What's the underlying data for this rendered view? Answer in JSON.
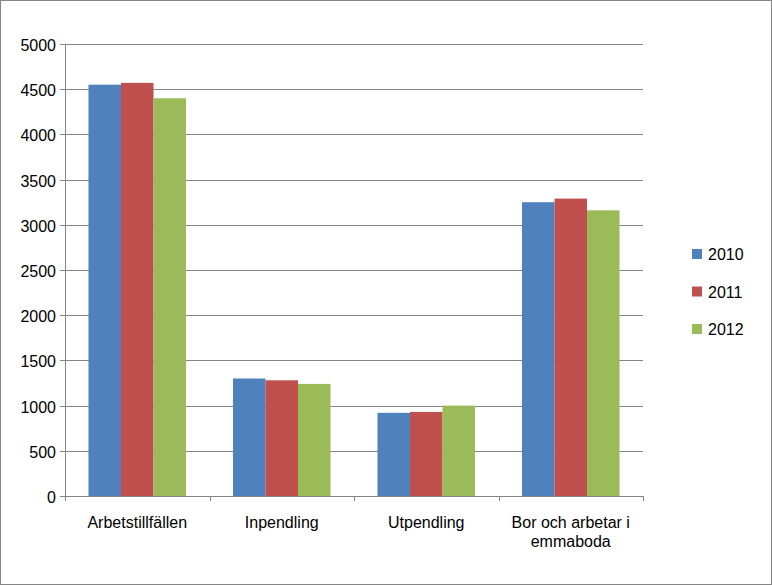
{
  "chart_data": {
    "type": "bar",
    "categories": [
      "Arbetstillfällen",
      "Inpendling",
      "Utpendling",
      "Bor och arbetar i emmaboda"
    ],
    "series": [
      {
        "name": "2010",
        "color": "#4f81bd",
        "values": [
          4550,
          1300,
          920,
          3250
        ]
      },
      {
        "name": "2011",
        "color": "#c0504d",
        "values": [
          4570,
          1280,
          930,
          3290
        ]
      },
      {
        "name": "2012",
        "color": "#9bbb59",
        "values": [
          4400,
          1240,
          1000,
          3160
        ]
      }
    ],
    "ylim": [
      0,
      5000
    ],
    "yticks": [
      0,
      500,
      1000,
      1500,
      2000,
      2500,
      3000,
      3500,
      4000,
      4500,
      5000
    ],
    "grid": true,
    "legend": "right"
  }
}
